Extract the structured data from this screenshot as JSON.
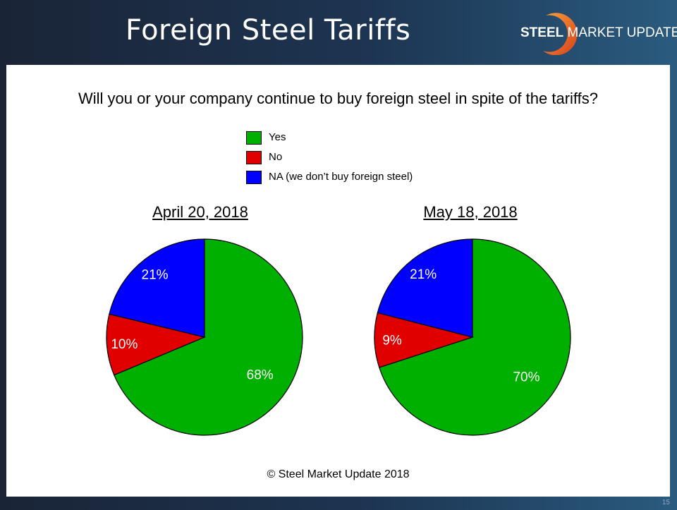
{
  "slide": {
    "title": "Foreign Steel Tariffs",
    "logo": {
      "bold": "STEEL",
      "rest": " MARKET UPDATE"
    },
    "page_number": "15",
    "copyright": "© Steel Market Update 2018"
  },
  "colors": {
    "yes": "#00b000",
    "no": "#e00000",
    "na": "#0000ff"
  },
  "chart_data": [
    {
      "type": "pie",
      "title": "Will you or your company continue to buy foreign steel in spite of the tariffs?",
      "subtitle": "April 20, 2018",
      "categories": [
        "Yes",
        "No",
        "NA (we don’t buy foreign steel)"
      ],
      "values": [
        68,
        10,
        21
      ],
      "labels": [
        "68%",
        "10%",
        "21%"
      ]
    },
    {
      "type": "pie",
      "title": "Will you or your company continue to buy foreign steel in spite of the tariffs?",
      "subtitle": "May 18, 2018",
      "categories": [
        "Yes",
        "No",
        "NA (we don’t buy foreign steel)"
      ],
      "values": [
        70,
        9,
        21
      ],
      "labels": [
        "70%",
        "9%",
        "21%"
      ]
    }
  ]
}
